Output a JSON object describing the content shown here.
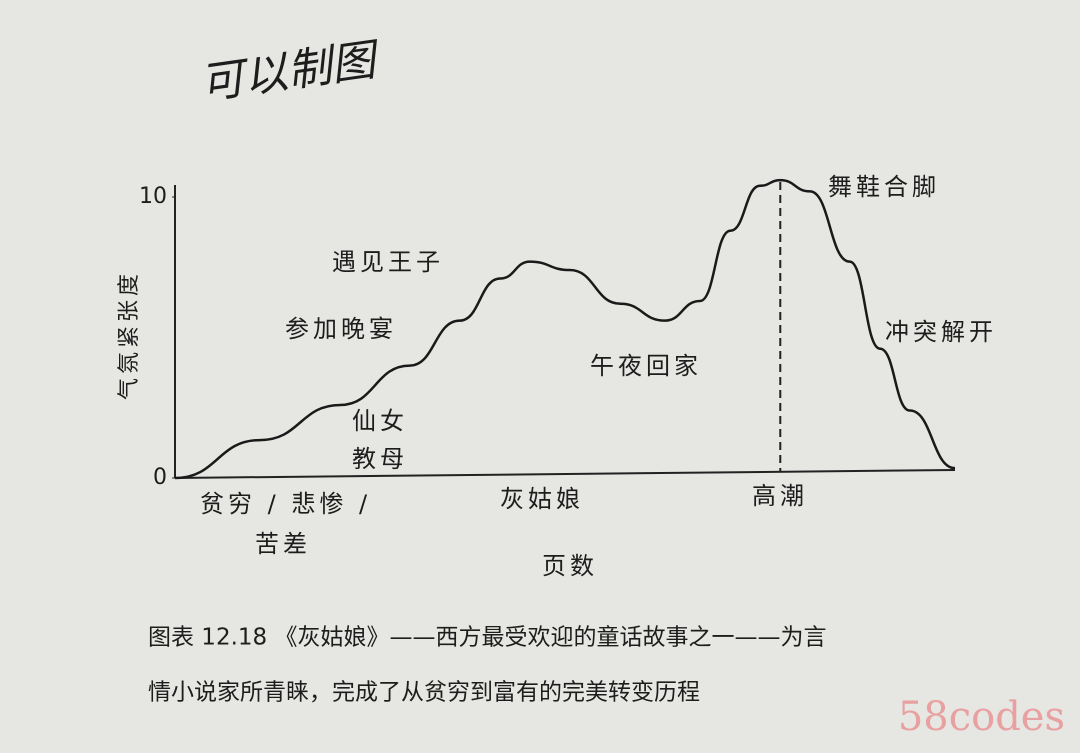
{
  "handwriting": "可以制图",
  "chart_data": {
    "type": "line",
    "ylabel": "气氛紧张度",
    "xlabel": "页数",
    "x": [
      0,
      10.9,
      21.2,
      30.1,
      36.5,
      41.7,
      45.5,
      50.6,
      57.1,
      62.8,
      67.3,
      71.2,
      75,
      77.6,
      81.4,
      86.5,
      90.4,
      94.2,
      100
    ],
    "values": [
      0,
      1.35,
      2.6,
      4.0,
      5.6,
      7.1,
      7.7,
      7.4,
      6.2,
      5.6,
      6.3,
      8.8,
      10.4,
      10.6,
      10.2,
      7.7,
      4.6,
      2.4,
      0.35
    ],
    "xlim": [
      0,
      100
    ],
    "ylim": [
      0,
      10
    ],
    "yticks": [
      0,
      10
    ],
    "color": "#1a1a1a",
    "climax_x": 77.6,
    "annotations": [
      {
        "lines": [
          "贫穷 / 悲惨 /",
          "苦差"
        ]
      },
      {
        "lines": [
          "仙女",
          "教母"
        ]
      },
      {
        "lines": [
          "参加晚宴"
        ]
      },
      {
        "lines": [
          "遇见王子"
        ]
      },
      {
        "lines": [
          "午夜回家"
        ]
      },
      {
        "lines": [
          "灰姑娘"
        ]
      },
      {
        "lines": [
          "高潮"
        ]
      },
      {
        "lines": [
          "舞鞋合脚"
        ]
      },
      {
        "lines": [
          "冲突解开"
        ]
      }
    ]
  },
  "caption": [
    "图表 12.18 《灰姑娘》——西方最受欢迎的童话故事之一——为言",
    "情小说家所青睐，完成了从贫穷到富有的完美转变历程"
  ],
  "watermark": "58codes"
}
